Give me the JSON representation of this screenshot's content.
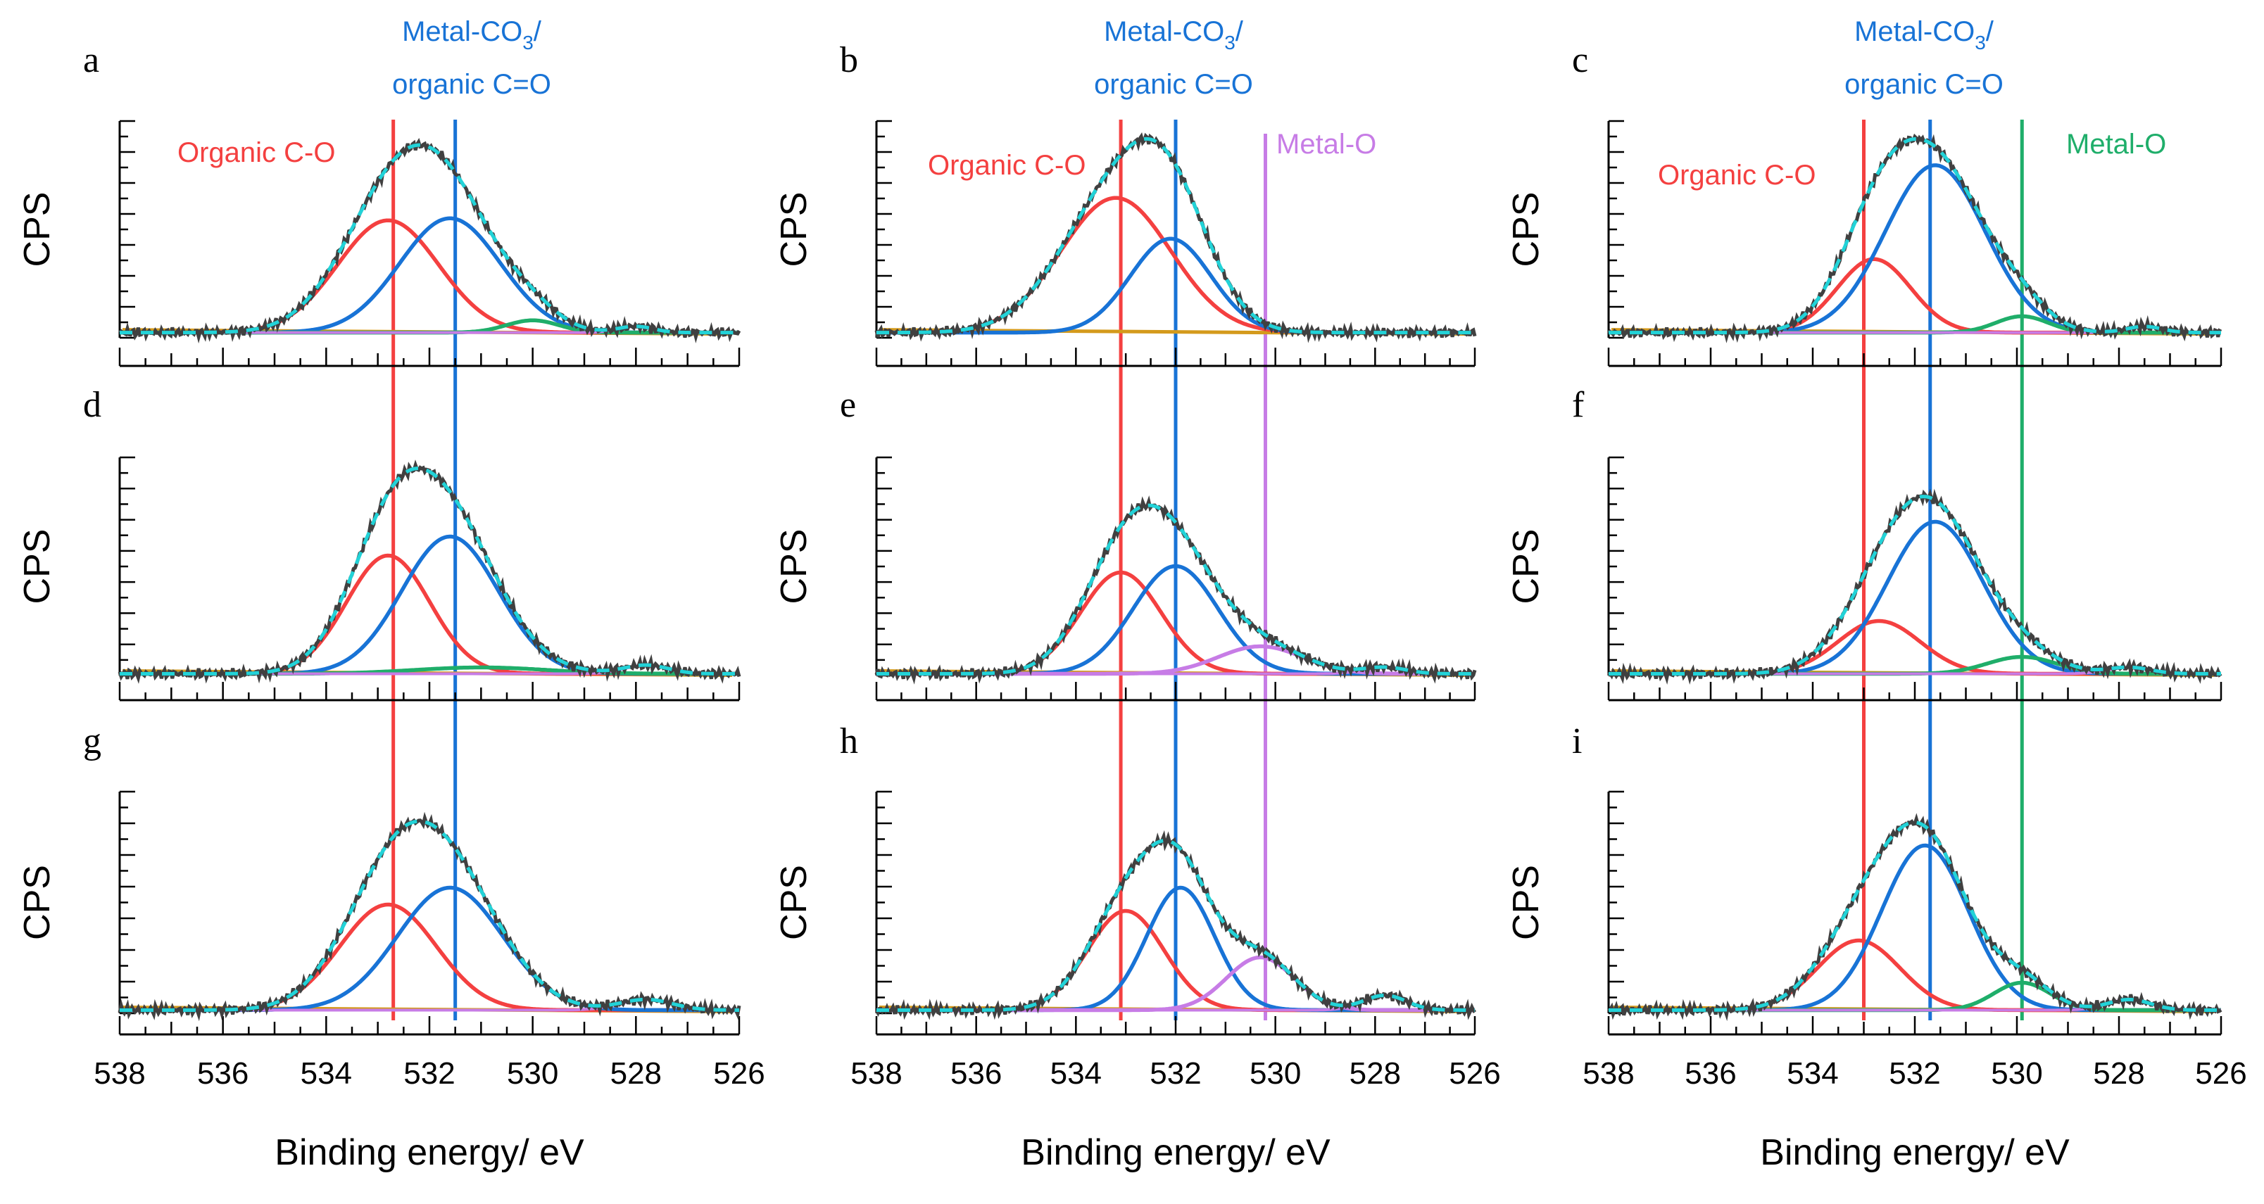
{
  "chart_data": {
    "type": "line",
    "title": "",
    "xlabel": "Binding energy/ eV",
    "ylabel": "CPS",
    "xlim": [
      538,
      526
    ],
    "x_ticks": [
      538,
      536,
      534,
      532,
      530,
      528,
      526
    ],
    "x_tick_labels": [
      "538",
      "536",
      "534",
      "532",
      "530",
      "528",
      "526"
    ],
    "grid": false,
    "colors": {
      "raw": "#404040",
      "envelope": "#22d3d8",
      "organic_CO": "#f44040",
      "carbonate": "#1873d6",
      "metal_O_purple": "#c77ce6",
      "metal_O_green": "#1fae6a",
      "background": "#d49a1c"
    },
    "annotations": {
      "organic_CO": "Organic C-O",
      "carbonate_line1": "Metal-CO",
      "carbonate_sub": "3",
      "carbonate_tail": "/",
      "carbonate_line2": "organic C=O",
      "metal_O": "Metal-O"
    },
    "reference_lines": [
      {
        "column": 0,
        "x": 532.7,
        "color": "#f44040"
      },
      {
        "column": 0,
        "x": 531.5,
        "color": "#1873d6"
      },
      {
        "column": 1,
        "x": 533.1,
        "color": "#f44040"
      },
      {
        "column": 1,
        "x": 532.0,
        "color": "#1873d6"
      },
      {
        "column": 1,
        "x": 530.2,
        "color": "#c77ce6"
      },
      {
        "column": 2,
        "x": 533.0,
        "color": "#f44040"
      },
      {
        "column": 2,
        "x": 531.7,
        "color": "#1873d6"
      },
      {
        "column": 2,
        "x": 529.9,
        "color": "#1fae6a"
      }
    ],
    "panels": [
      {
        "label": "a",
        "peaks": [
          {
            "name": "Organic C-O",
            "center": 532.8,
            "height": 0.55,
            "fwhm": 2.3
          },
          {
            "name": "Metal-CO3/organic C=O",
            "center": 531.6,
            "height": 0.56,
            "fwhm": 2.3
          },
          {
            "name": "Metal-O",
            "center": 530.0,
            "height": 0.06,
            "fwhm": 1.2
          },
          {
            "name": "Minor",
            "center": 528.0,
            "height": 0.03,
            "fwhm": 0.8
          }
        ]
      },
      {
        "label": "b",
        "peaks": [
          {
            "name": "Organic C-O",
            "center": 533.2,
            "height": 0.66,
            "fwhm": 2.6
          },
          {
            "name": "Metal-CO3/organic C=O",
            "center": 532.1,
            "height": 0.46,
            "fwhm": 1.9
          }
        ]
      },
      {
        "label": "c",
        "peaks": [
          {
            "name": "Organic C-O",
            "center": 532.8,
            "height": 0.36,
            "fwhm": 1.7
          },
          {
            "name": "Metal-CO3/organic C=O",
            "center": 531.6,
            "height": 0.82,
            "fwhm": 2.3
          },
          {
            "name": "Metal-O",
            "center": 529.9,
            "height": 0.08,
            "fwhm": 1.2
          },
          {
            "name": "Minor",
            "center": 527.5,
            "height": 0.03,
            "fwhm": 0.8
          }
        ]
      },
      {
        "label": "d",
        "peaks": [
          {
            "name": "Organic C-O",
            "center": 532.8,
            "height": 0.56,
            "fwhm": 1.9
          },
          {
            "name": "Metal-CO3/organic C=O",
            "center": 531.6,
            "height": 0.65,
            "fwhm": 2.2
          },
          {
            "name": "Metal-O",
            "center": 531.0,
            "height": 0.03,
            "fwhm": 3.0
          },
          {
            "name": "Minor",
            "center": 527.8,
            "height": 0.04,
            "fwhm": 1.0
          }
        ]
      },
      {
        "label": "e",
        "peaks": [
          {
            "name": "Organic C-O",
            "center": 533.1,
            "height": 0.48,
            "fwhm": 1.9
          },
          {
            "name": "Metal-CO3/organic C=O",
            "center": 532.0,
            "height": 0.51,
            "fwhm": 2.0
          },
          {
            "name": "Metal-O",
            "center": 530.3,
            "height": 0.13,
            "fwhm": 2.0
          },
          {
            "name": "Minor",
            "center": 527.8,
            "height": 0.03,
            "fwhm": 1.0
          }
        ]
      },
      {
        "label": "f",
        "peaks": [
          {
            "name": "Organic C-O",
            "center": 532.7,
            "height": 0.25,
            "fwhm": 1.9
          },
          {
            "name": "Metal-CO3/organic C=O",
            "center": 531.6,
            "height": 0.72,
            "fwhm": 2.2
          },
          {
            "name": "Metal-O",
            "center": 529.9,
            "height": 0.08,
            "fwhm": 1.6
          },
          {
            "name": "Minor",
            "center": 527.8,
            "height": 0.03,
            "fwhm": 1.0
          }
        ]
      },
      {
        "label": "g",
        "peaks": [
          {
            "name": "Organic C-O",
            "center": 532.8,
            "height": 0.5,
            "fwhm": 2.2
          },
          {
            "name": "Metal-CO3/organic C=O",
            "center": 531.6,
            "height": 0.58,
            "fwhm": 2.4
          },
          {
            "name": "Minor",
            "center": 527.8,
            "height": 0.05,
            "fwhm": 1.2
          }
        ]
      },
      {
        "label": "h",
        "peaks": [
          {
            "name": "Organic C-O",
            "center": 533.0,
            "height": 0.47,
            "fwhm": 1.8
          },
          {
            "name": "Metal-CO3/organic C=O",
            "center": 531.9,
            "height": 0.58,
            "fwhm": 1.6
          },
          {
            "name": "Metal-O",
            "center": 530.3,
            "height": 0.25,
            "fwhm": 1.6
          },
          {
            "name": "Minor",
            "center": 527.8,
            "height": 0.07,
            "fwhm": 1.0
          }
        ]
      },
      {
        "label": "i",
        "peaks": [
          {
            "name": "Organic C-O",
            "center": 533.1,
            "height": 0.33,
            "fwhm": 1.9
          },
          {
            "name": "Metal-CO3/organic C=O",
            "center": 531.8,
            "height": 0.78,
            "fwhm": 2.0
          },
          {
            "name": "Metal-O",
            "center": 529.9,
            "height": 0.13,
            "fwhm": 1.3
          },
          {
            "name": "Minor",
            "center": 527.8,
            "height": 0.05,
            "fwhm": 1.0
          }
        ]
      }
    ]
  }
}
